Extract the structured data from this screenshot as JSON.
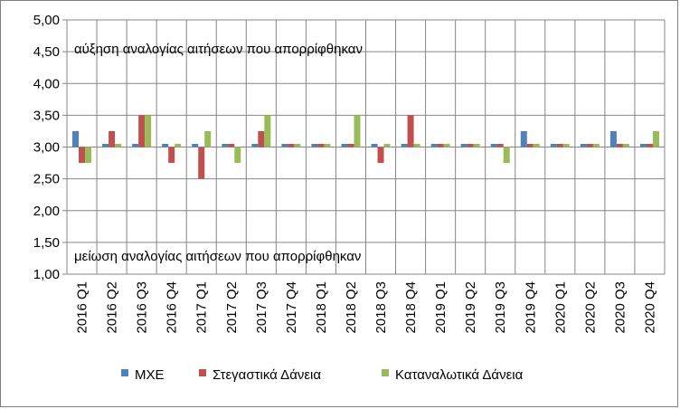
{
  "chart_data": {
    "type": "bar",
    "categories": [
      "2016 Q1",
      "2016 Q2",
      "2016 Q3",
      "2016 Q4",
      "2017 Q1",
      "2017 Q2",
      "2017 Q3",
      "2017 Q4",
      "2018 Q1",
      "2018 Q2",
      "2018 Q3",
      "2018 Q4",
      "2019 Q1",
      "2019 Q2",
      "2019 Q3",
      "2019 Q4",
      "2020 Q1",
      "2020 Q2",
      "2020 Q3",
      "2020 Q4"
    ],
    "series": [
      {
        "name": "ΜΧΕ",
        "color": "#4f81bd",
        "values": [
          3.25,
          3.05,
          3.05,
          3.05,
          3.05,
          3.05,
          3.05,
          3.05,
          3.05,
          3.05,
          3.05,
          3.05,
          3.05,
          3.05,
          3.05,
          3.25,
          3.05,
          3.05,
          3.25,
          3.05
        ]
      },
      {
        "name": "Στεγαστικά Δάνεια",
        "color": "#c0504d",
        "values": [
          2.75,
          3.25,
          3.5,
          2.75,
          2.5,
          3.05,
          3.25,
          3.05,
          3.05,
          3.05,
          2.75,
          3.5,
          3.05,
          3.05,
          3.05,
          3.05,
          3.05,
          3.05,
          3.05,
          3.05
        ]
      },
      {
        "name": "Καταναλωτικά Δάνεια",
        "color": "#9bbb59",
        "values": [
          2.75,
          3.05,
          3.5,
          3.05,
          3.25,
          2.75,
          3.5,
          3.05,
          3.05,
          3.5,
          3.05,
          3.05,
          3.05,
          3.05,
          2.75,
          3.05,
          3.05,
          3.05,
          3.05,
          3.25
        ]
      }
    ],
    "baseline": 3.0,
    "ylim": [
      1.0,
      5.0
    ],
    "yticks": [
      "1,00",
      "1,50",
      "2,00",
      "2,50",
      "3,00",
      "3,50",
      "4,00",
      "4,50",
      "5,00"
    ],
    "ytick_values": [
      1.0,
      1.5,
      2.0,
      2.5,
      3.0,
      3.5,
      4.0,
      4.5,
      5.0
    ],
    "annotations": {
      "top": "αύξηση αναλογίας αιτήσεων που απορρίφθηκαν",
      "bottom": "μείωση αναλογίας αιτήσεων που απορρίφθηκαν"
    },
    "grid": true,
    "legend": "bottom"
  }
}
